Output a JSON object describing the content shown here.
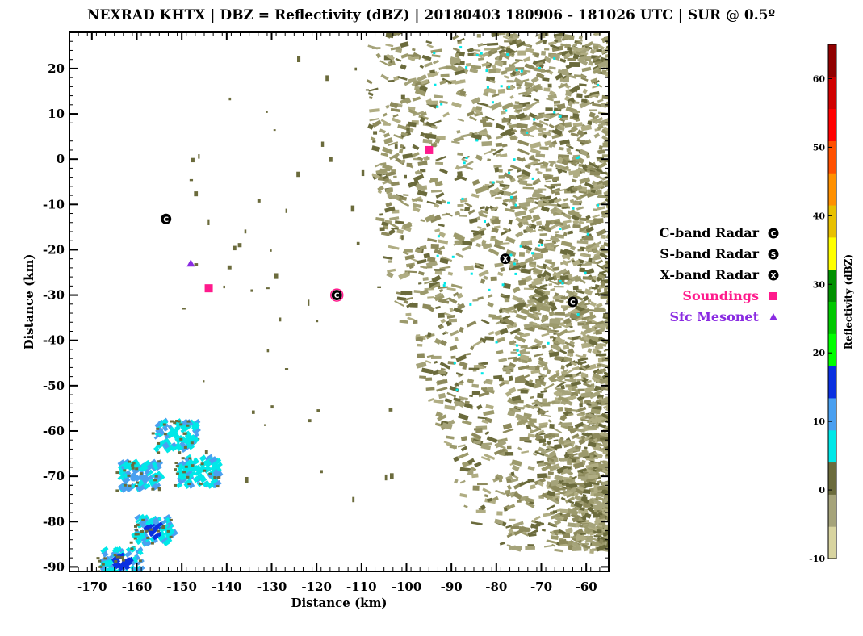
{
  "chart_data": {
    "type": "heatmap",
    "title": "NEXRAD KHTX | DBZ = Reflectivity (dBZ) | 20180403 180906 - 181026 UTC | SUR @ 0.5º",
    "xlabel": "Distance (km)",
    "ylabel": "Distance (km)",
    "xlim": [
      -175,
      -55
    ],
    "ylim": [
      -91,
      28
    ],
    "x_ticks": [
      -170,
      -160,
      -150,
      -140,
      -130,
      -120,
      -110,
      -100,
      -90,
      -80,
      -70,
      -60
    ],
    "y_ticks": [
      20,
      10,
      0,
      -10,
      -20,
      -30,
      -40,
      -50,
      -60,
      -70,
      -80,
      -90
    ],
    "colorbar": {
      "label": "Reflectivity (dBZ)",
      "min": -10,
      "max": 65,
      "ticks": [
        60,
        50,
        40,
        30,
        20,
        10,
        0,
        -10
      ],
      "colors": [
        "#d8d4a0",
        "#a5a37a",
        "#6b6b3c",
        "#00e8e8",
        "#4aa0f0",
        "#0a30e0",
        "#00ff00",
        "#00c800",
        "#009000",
        "#ffff00",
        "#e8c000",
        "#ff9000",
        "#ff5000",
        "#ff0000",
        "#d00000",
        "#900000"
      ]
    },
    "legend": [
      {
        "label": "C-band Radar",
        "marker": "circle-C",
        "color": "#000000"
      },
      {
        "label": "S-band Radar",
        "marker": "circle-S",
        "color": "#000000"
      },
      {
        "label": "X-band Radar",
        "marker": "circle-X",
        "color": "#000000"
      },
      {
        "label": "Soundings",
        "marker": "square",
        "color": "#ff1a8c"
      },
      {
        "label": "Sfc Mesonet",
        "marker": "triangle",
        "color": "#8a2be2"
      }
    ],
    "sites": [
      {
        "type": "C-band Radar",
        "x": -153.5,
        "y": -13.2
      },
      {
        "type": "C-band Radar",
        "x": -115.5,
        "y": -30.0
      },
      {
        "type": "X-band Radar",
        "x": -78.0,
        "y": -22.0
      },
      {
        "type": "C-band Radar",
        "x": -63.0,
        "y": -31.5
      },
      {
        "type": "Soundings",
        "x": -144.0,
        "y": -28.5
      },
      {
        "type": "Soundings",
        "x": -95.0,
        "y": 2.0
      },
      {
        "type": "Sfc Mesonet",
        "x": -148.0,
        "y": -23.0
      }
    ],
    "echo_regions": [
      {
        "name": "weak clutter field",
        "xmin": -100,
        "xmax": -56,
        "ymin": -85,
        "ymax": 27,
        "dbz_range": [
          -5,
          5
        ],
        "color": "#9c9a6c"
      },
      {
        "name": "stronger cell 1",
        "center_x": -152,
        "center_y": -61,
        "dbz": 8,
        "color": "#00e8e8"
      },
      {
        "name": "stronger cell 2",
        "center_x": -147,
        "center_y": -69,
        "dbz": 9,
        "color": "#00e8e8"
      },
      {
        "name": "stronger cell 3",
        "center_x": -160,
        "center_y": -70,
        "dbz": 12,
        "color": "#4aa0f0"
      },
      {
        "name": "stronger cell 4",
        "center_x": -157,
        "center_y": -82,
        "dbz": 18,
        "color": "#0a30e0"
      },
      {
        "name": "stronger cell 5",
        "center_x": -164,
        "center_y": -89,
        "dbz": 16,
        "color": "#0a30e0"
      }
    ]
  }
}
